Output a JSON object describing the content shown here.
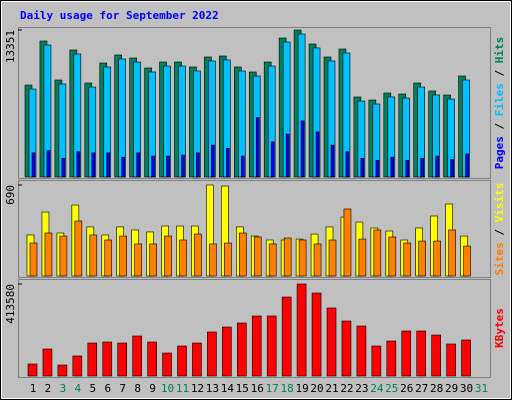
{
  "chart_data": [
    {
      "type": "bar",
      "title": "Daily usage for September 2022",
      "ylim": [
        0,
        13351
      ],
      "yticks": [
        13351
      ],
      "legend_separator": "/",
      "series": [
        {
          "name": "Hits",
          "color": "#00805c",
          "values": [
            8356,
            12352,
            8810,
            11535,
            8537,
            10354,
            11081,
            10808,
            9900,
            10445,
            10445,
            9991,
            10899,
            10990,
            9991,
            9536,
            10445,
            12624,
            13351,
            12080,
            10899,
            11626,
            7266,
            6993,
            7629,
            7538,
            8537,
            7811,
            7448,
            9173,
            null
          ]
        },
        {
          "name": "Files",
          "color": "#00c0ff",
          "values": [
            7990,
            11990,
            8450,
            11170,
            8170,
            9990,
            10720,
            10440,
            9540,
            10080,
            10080,
            9630,
            10540,
            10630,
            9630,
            9170,
            10080,
            12260,
            12990,
            11720,
            10540,
            11260,
            6900,
            6630,
            7270,
            7170,
            8170,
            7450,
            7080,
            8810,
            null
          ]
        },
        {
          "name": "Pages",
          "color": "#0000ff",
          "values": [
            2200,
            2400,
            1700,
            2300,
            2200,
            2200,
            1800,
            2200,
            1900,
            1900,
            2000,
            2200,
            2900,
            2600,
            1900,
            5400,
            3200,
            3900,
            5100,
            4100,
            2900,
            2300,
            1700,
            1500,
            1800,
            1500,
            1700,
            1900,
            1600,
            2100,
            null
          ]
        }
      ]
    },
    {
      "type": "bar",
      "ylim": [
        0,
        690
      ],
      "yticks": [
        690
      ],
      "legend_separator": "/",
      "series": [
        {
          "name": "Visits",
          "color": "#ffff00",
          "values": [
            311,
            485,
            326,
            538,
            372,
            311,
            372,
            349,
            334,
            379,
            379,
            379,
            690,
            682,
            372,
            303,
            273,
            273,
            280,
            318,
            372,
            447,
            409,
            364,
            341,
            273,
            364,
            455,
            546,
            303,
            null
          ]
        },
        {
          "name": "Sites",
          "color": "#ff8000",
          "values": [
            250,
            326,
            303,
            417,
            311,
            273,
            303,
            243,
            243,
            303,
            273,
            318,
            243,
            250,
            326,
            296,
            243,
            288,
            273,
            243,
            273,
            508,
            280,
            349,
            296,
            250,
            265,
            265,
            349,
            227,
            null
          ]
        }
      ]
    },
    {
      "type": "bar",
      "ylim": [
        0,
        413580
      ],
      "yticks": [
        413580
      ],
      "categories": [
        "1",
        "2",
        "3",
        "4",
        "5",
        "6",
        "7",
        "8",
        "9",
        "10",
        "11",
        "12",
        "13",
        "14",
        "15",
        "16",
        "17",
        "18",
        "19",
        "20",
        "21",
        "22",
        "23",
        "24",
        "25",
        "26",
        "27",
        "28",
        "29",
        "30",
        "31"
      ],
      "category_colors": [
        "#000000",
        "#000000",
        "#00805c",
        "#00805c",
        "#000000",
        "#000000",
        "#000000",
        "#000000",
        "#000000",
        "#00805c",
        "#00805c",
        "#000000",
        "#000000",
        "#000000",
        "#000000",
        "#000000",
        "#00805c",
        "#00805c",
        "#000000",
        "#000000",
        "#000000",
        "#000000",
        "#000000",
        "#00805c",
        "#00805c",
        "#000000",
        "#000000",
        "#000000",
        "#000000",
        "#000000",
        "#00805c"
      ],
      "series": [
        {
          "name": "KBytes",
          "color": "#ff0000",
          "values": [
            53945,
            121378,
            49451,
            89909,
            148351,
            152847,
            148351,
            179817,
            152847,
            103395,
            134863,
            148351,
            197799,
            220277,
            238259,
            269726,
            269726,
            355140,
            413580,
            373121,
            305689,
            247249,
            224772,
            134863,
            157340,
            202294,
            202294,
            184313,
            143854,
            161836,
            null
          ]
        }
      ]
    }
  ]
}
